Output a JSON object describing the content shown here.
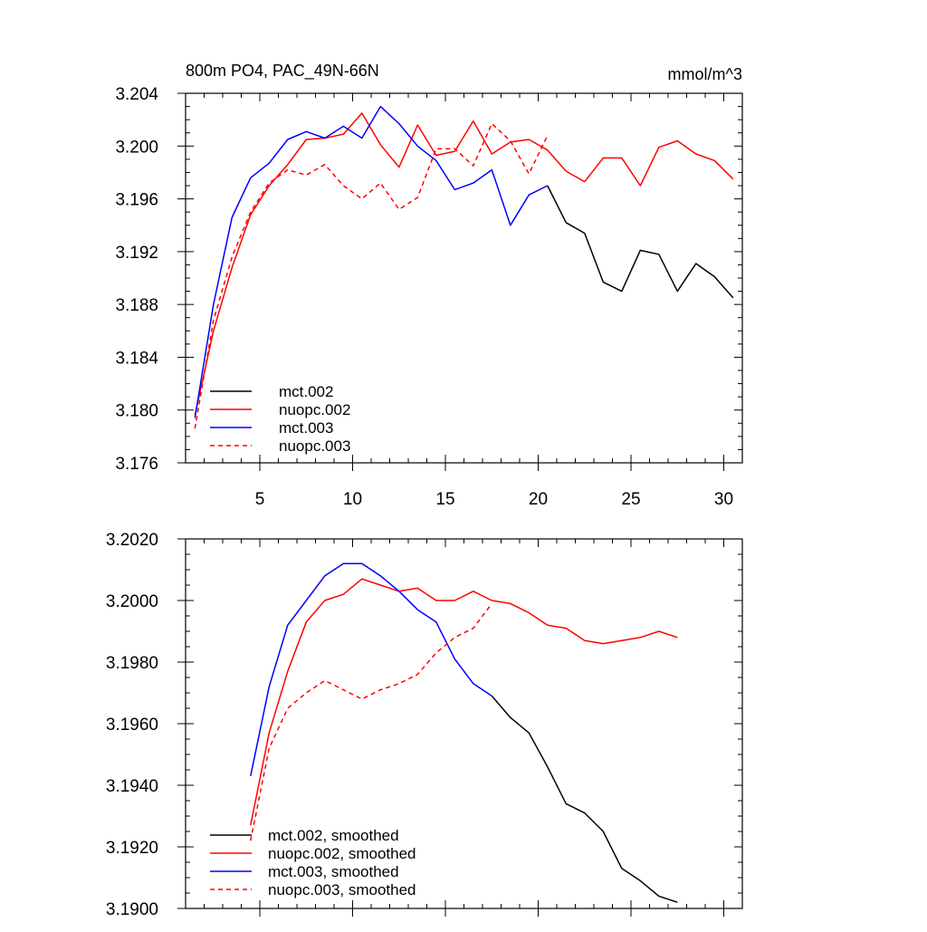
{
  "chart_data": [
    {
      "type": "line",
      "title": "800m PO4, PAC_49N-66N",
      "units": "mmol/m^3",
      "xlim": [
        1,
        31
      ],
      "ylim": [
        3.176,
        3.204
      ],
      "xticks": [
        5,
        10,
        15,
        20,
        25,
        30
      ],
      "xtick_labels": [
        "5",
        "10",
        "15",
        "20",
        "25",
        "30"
      ],
      "yticks": [
        3.176,
        3.18,
        3.184,
        3.188,
        3.192,
        3.196,
        3.2,
        3.204
      ],
      "ytick_labels": [
        "3.176",
        "3.180",
        "3.184",
        "3.188",
        "3.192",
        "3.196",
        "3.200",
        "3.204"
      ],
      "legend_position": "bottom-left",
      "series": [
        {
          "name": "mct.002",
          "color": "#000000",
          "dash": false,
          "x": [
            20.5,
            21.5,
            22.5,
            23.5,
            24.5,
            25.5,
            26.5,
            27.5,
            28.5,
            29.5,
            30.5
          ],
          "y": [
            3.197,
            3.1942,
            3.1934,
            3.1897,
            3.189,
            3.1921,
            3.1918,
            3.189,
            3.1911,
            3.1901,
            3.1885
          ]
        },
        {
          "name": "nuopc.002",
          "color": "#ff0000",
          "dash": false,
          "x": [
            1.5,
            2.5,
            3.5,
            4.5,
            5.5,
            6.5,
            7.5,
            8.5,
            9.5,
            10.5,
            11.5,
            12.5,
            13.5,
            14.5,
            15.5,
            16.5,
            17.5,
            18.5,
            19.5,
            20.5,
            21.5,
            22.5,
            23.5,
            24.5,
            25.5,
            26.5,
            27.5,
            28.5,
            29.5,
            30.5
          ],
          "y": [
            3.1796,
            3.186,
            3.1908,
            3.1948,
            3.197,
            3.1986,
            3.2005,
            3.2006,
            3.2009,
            3.2025,
            3.2001,
            3.1984,
            3.2016,
            3.1993,
            3.1996,
            3.2019,
            3.1994,
            3.2003,
            3.2005,
            3.1997,
            3.1981,
            3.1973,
            3.1991,
            3.1991,
            3.197,
            3.1999,
            3.2004,
            3.1994,
            3.1989,
            3.1975
          ]
        },
        {
          "name": "mct.003",
          "color": "#0000ff",
          "dash": false,
          "x": [
            1.5,
            2.5,
            3.5,
            4.5,
            5.5,
            6.5,
            7.5,
            8.5,
            9.5,
            10.5,
            11.5,
            12.5,
            13.5,
            14.5,
            15.5,
            16.5,
            17.5,
            18.5,
            19.5,
            20.5
          ],
          "y": [
            3.1794,
            3.188,
            3.1946,
            3.1976,
            3.1987,
            3.2005,
            3.2011,
            3.2006,
            3.2015,
            3.2006,
            3.203,
            3.2017,
            3.2,
            3.1989,
            3.1967,
            3.1972,
            3.1982,
            3.194,
            3.1963,
            3.197
          ]
        },
        {
          "name": "nuopc.003",
          "color": "#ff0000",
          "dash": true,
          "x": [
            1.5,
            2.5,
            3.5,
            4.5,
            5.5,
            6.5,
            7.5,
            8.5,
            9.5,
            10.5,
            11.5,
            12.5,
            13.5,
            14.5,
            15.5,
            16.5,
            17.5,
            18.5,
            19.5,
            20.5
          ],
          "y": [
            3.1786,
            3.1868,
            3.1916,
            3.195,
            3.1972,
            3.1982,
            3.1978,
            3.1986,
            3.197,
            3.196,
            3.1972,
            3.1952,
            3.1961,
            3.1998,
            3.1998,
            3.1985,
            3.2017,
            3.2004,
            3.1979,
            3.2008
          ]
        }
      ]
    },
    {
      "type": "line",
      "title": "",
      "xlim": [
        1,
        31
      ],
      "ylim": [
        3.19,
        3.202
      ],
      "xticks": [
        5,
        10,
        15,
        20,
        25,
        30
      ],
      "xtick_labels": [],
      "yticks": [
        3.19,
        3.192,
        3.194,
        3.196,
        3.198,
        3.2,
        3.202
      ],
      "ytick_labels": [
        "3.1900",
        "3.1920",
        "3.1940",
        "3.1960",
        "3.1980",
        "3.2000",
        "3.2020"
      ],
      "legend_position": "bottom-left",
      "series": [
        {
          "name": "mct.002, smoothed",
          "color": "#000000",
          "dash": false,
          "x": [
            17.5,
            18.5,
            19.5,
            20.5,
            21.5,
            22.5,
            23.5,
            24.5,
            25.5,
            26.5,
            27.5
          ],
          "y": [
            3.1969,
            3.1962,
            3.1957,
            3.1946,
            3.1934,
            3.1931,
            3.1925,
            3.1913,
            3.1909,
            3.1904,
            3.1902
          ]
        },
        {
          "name": "nuopc.002, smoothed",
          "color": "#ff0000",
          "dash": false,
          "x": [
            4.5,
            5.5,
            6.5,
            7.5,
            8.5,
            9.5,
            10.5,
            11.5,
            12.5,
            13.5,
            14.5,
            15.5,
            16.5,
            17.5,
            18.5,
            19.5,
            20.5,
            21.5,
            22.5,
            23.5,
            24.5,
            25.5,
            26.5,
            27.5
          ],
          "y": [
            3.1927,
            3.1957,
            3.1977,
            3.1993,
            3.2,
            3.2002,
            3.2007,
            3.2005,
            3.2003,
            3.2004,
            3.2,
            3.2,
            3.2003,
            3.2,
            3.1999,
            3.1996,
            3.1992,
            3.1991,
            3.1987,
            3.1986,
            3.1987,
            3.1988,
            3.199,
            3.1988
          ]
        },
        {
          "name": "mct.003, smoothed",
          "color": "#0000ff",
          "dash": false,
          "x": [
            4.5,
            5.5,
            6.5,
            7.5,
            8.5,
            9.5,
            10.5,
            11.5,
            12.5,
            13.5,
            14.5,
            15.5,
            16.5,
            17.5
          ],
          "y": [
            3.1943,
            3.1972,
            3.1992,
            3.2,
            3.2008,
            3.2012,
            3.2012,
            3.2008,
            3.2003,
            3.1997,
            3.1993,
            3.1981,
            3.1973,
            3.1969
          ]
        },
        {
          "name": "nuopc.003, smoothed",
          "color": "#ff0000",
          "dash": true,
          "x": [
            4.5,
            5.5,
            6.5,
            7.5,
            8.5,
            9.5,
            10.5,
            11.5,
            12.5,
            13.5,
            14.5,
            15.5,
            16.5,
            17.5
          ],
          "y": [
            3.1922,
            3.1952,
            3.1965,
            3.197,
            3.1974,
            3.1971,
            3.1968,
            3.1971,
            3.1973,
            3.1976,
            3.1983,
            3.1988,
            3.1991,
            3.1999
          ]
        }
      ]
    }
  ]
}
